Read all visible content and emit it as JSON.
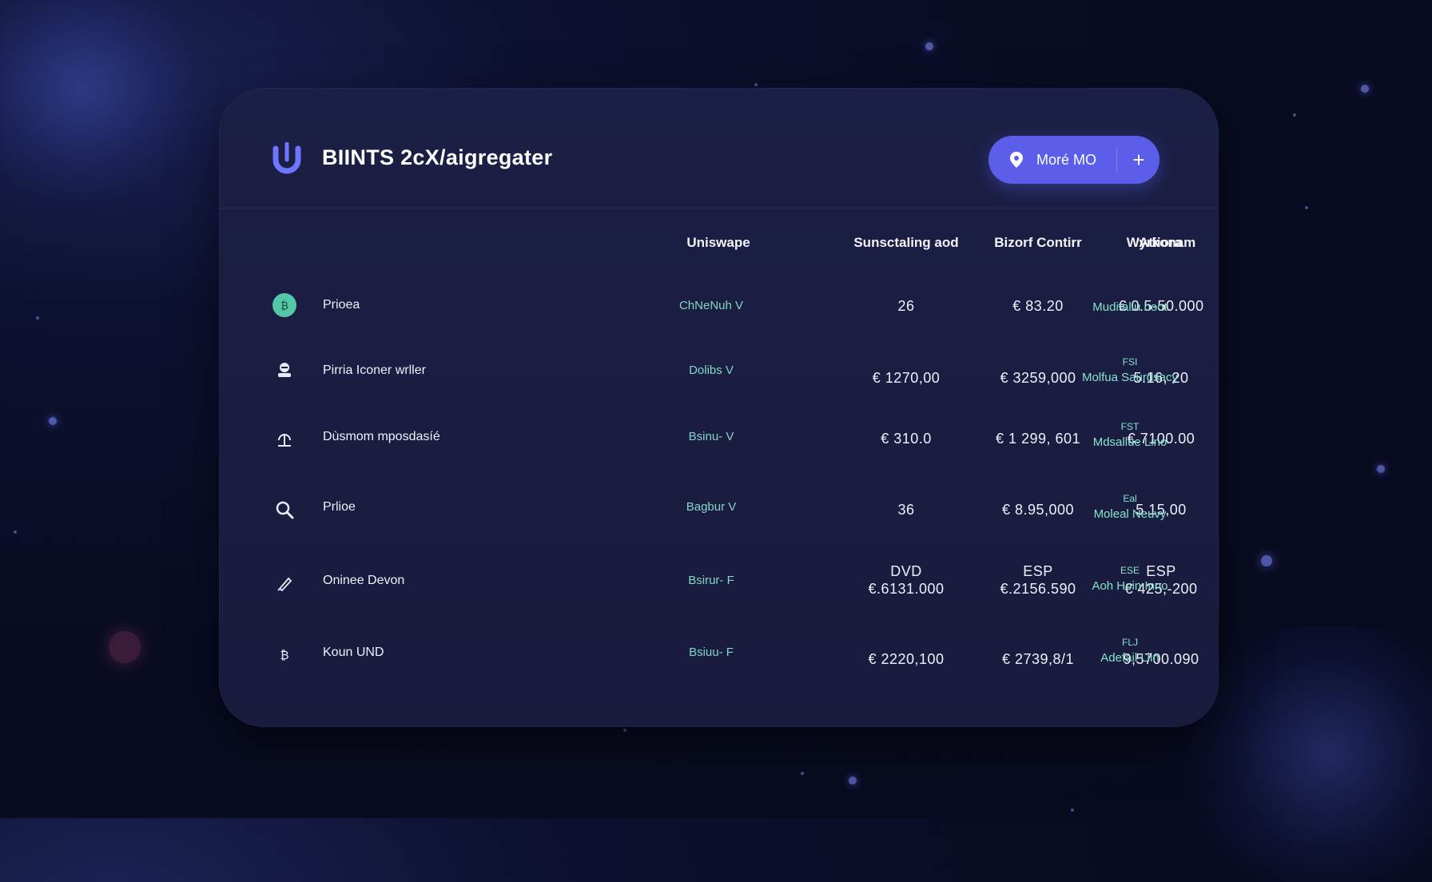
{
  "app": {
    "title": "BIINTS 2cX/aigregater"
  },
  "header": {
    "more_label": "Moré MO",
    "plus_label": "+"
  },
  "columns": [
    "Uniswape",
    "Sunsctaling aod",
    "Bizorf Contirr",
    "Wyrkonam",
    "Atiiora"
  ],
  "rows": [
    {
      "icon": "coin-icon",
      "name": "Prioea",
      "dex": "ChNeNuh V",
      "c1": "26",
      "c2": "€ 83.20",
      "c3": "€ 0.5-50.000",
      "action_tag": "",
      "action": "Muditaliu boot"
    },
    {
      "icon": "user-icon",
      "name": "Pirria Iconer wrller",
      "dex": "Dolibs V",
      "c1": "€ 1270,00",
      "c2": "€ 3259,000",
      "c3": "5.16, 20",
      "action_tag": "FSI",
      "action": "Molfua Saurdsacy"
    },
    {
      "icon": "upload-icon",
      "name": "Dùsmom mposdasíé",
      "dex": "Bsinu- V",
      "c1": "€ 310.0",
      "c2": "€ 1 299, 601",
      "c3": "€.7100.00",
      "action_tag": "FST",
      "action": "Mdsallue Lino"
    },
    {
      "icon": "search-icon",
      "name": "Prlioe",
      "dex": "Bagbur V",
      "c1": "36",
      "c2": "€ 8.95,000",
      "c3": "5.15,00",
      "action_tag": "Eal",
      "action": "Moleal Neuvy"
    },
    {
      "icon": "pen-icon",
      "name": "Oninee Devon",
      "dex": "Bsirur- F",
      "c1_top": "DVD",
      "c1": "€.6131.000",
      "c2_top": "ESP",
      "c2": "€.2156.590",
      "c3_top": "ESP",
      "c3": "€ 425,-200",
      "action_tag": "ESE",
      "action": "Aoh Hoin Inno"
    },
    {
      "icon": "bitcoin-icon",
      "name": "Koun UND",
      "dex": "Bsiuu- F",
      "c1": "€ 2220,100",
      "c2": "€ 2739,8/1",
      "c3": "9,5700.090",
      "action_tag": "FLJ",
      "action": "Adefail Liin"
    }
  ],
  "colors": {
    "accent": "#5a5ee8",
    "teal": "#7fd9c4",
    "panel": "#1b1e42"
  }
}
